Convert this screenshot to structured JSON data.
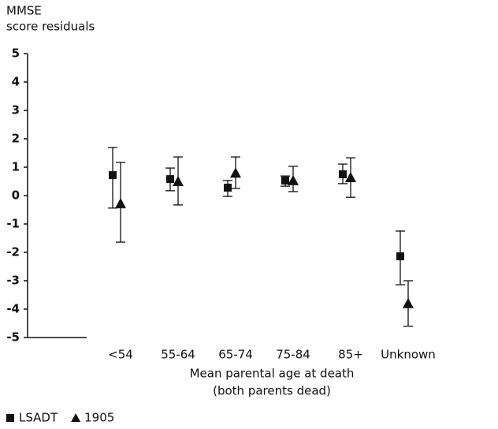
{
  "chart_data": {
    "type": "errorbar",
    "ylabel": [
      "MMSE",
      "score residuals"
    ],
    "xlabel": [
      "Mean parental age at death",
      "(both parents dead)"
    ],
    "categories": [
      "<54",
      "55-64",
      "65-74",
      "75-84",
      "85+",
      "Unknown"
    ],
    "series": [
      {
        "name": "LSADT",
        "marker": "square",
        "color": "#111111",
        "values": [
          0.72,
          0.58,
          0.28,
          0.53,
          0.75,
          -2.14
        ],
        "lower": [
          -0.44,
          0.17,
          -0.03,
          0.33,
          0.42,
          -3.14
        ],
        "upper": [
          1.69,
          0.97,
          0.53,
          0.69,
          1.11,
          -1.25
        ]
      },
      {
        "name": "1905",
        "marker": "triangle",
        "color": "#111111",
        "values": [
          -0.28,
          0.5,
          0.8,
          0.53,
          0.64,
          -3.8
        ],
        "lower": [
          -1.64,
          -0.33,
          0.25,
          0.14,
          -0.06,
          -4.6
        ],
        "upper": [
          1.17,
          1.36,
          1.36,
          1.03,
          1.33,
          -3.0
        ]
      }
    ],
    "ylim": [
      -5,
      5
    ],
    "yticks": [
      -5,
      -4,
      -3,
      -2,
      -1,
      0,
      1,
      2,
      3,
      4,
      5
    ],
    "legend": "bottom-left"
  }
}
